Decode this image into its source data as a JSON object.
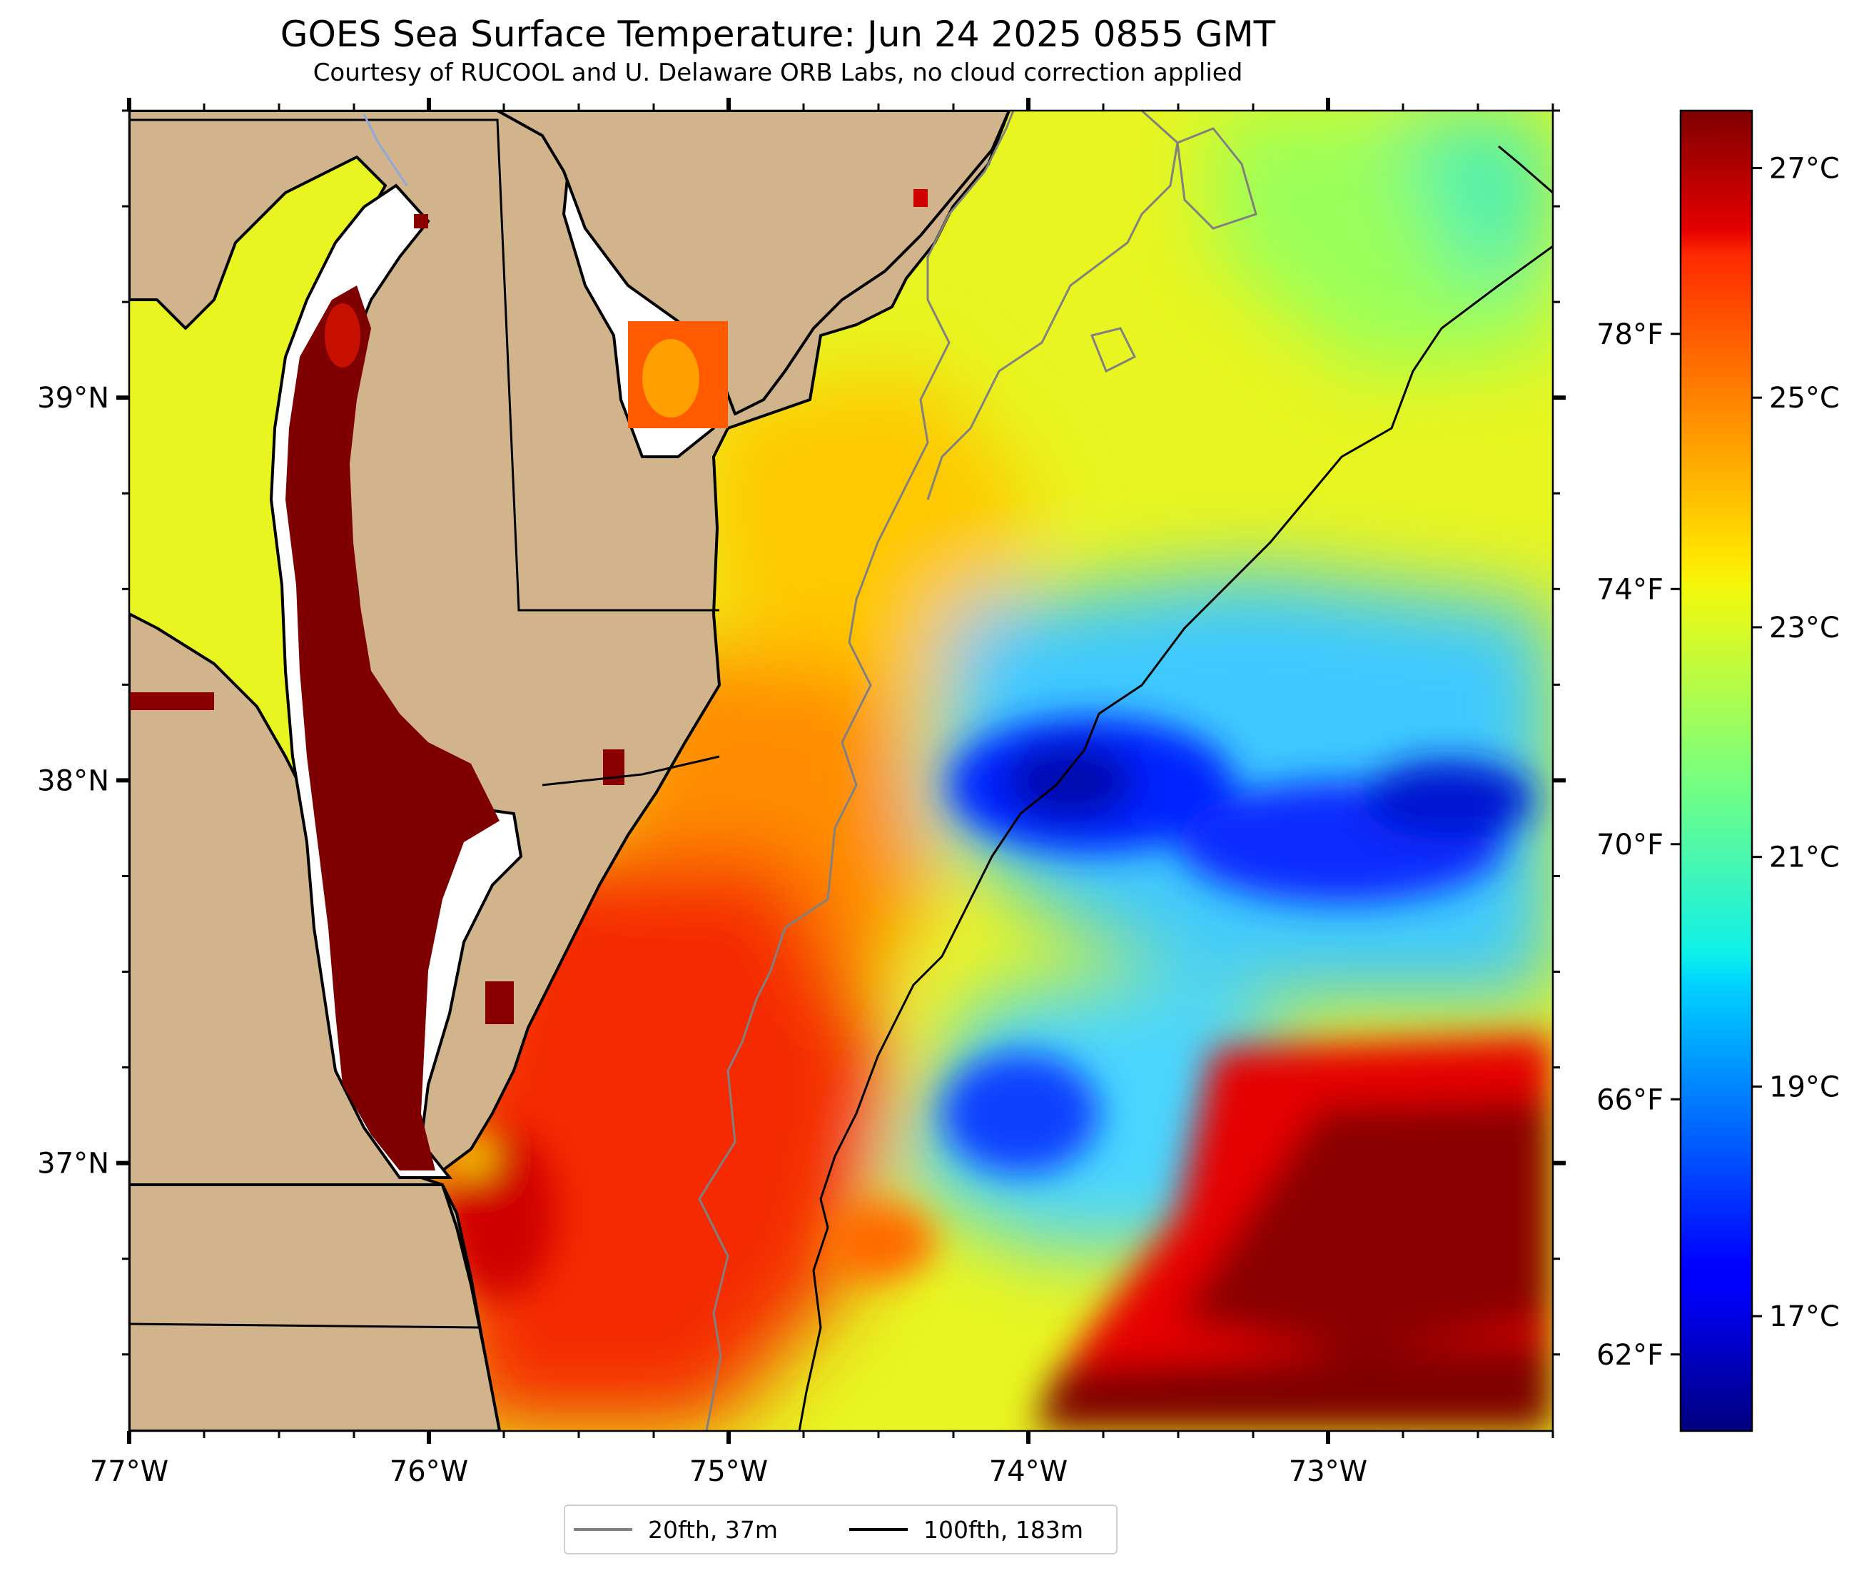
{
  "title": "GOES Sea Surface Temperature: Jun 24 2025 0855 GMT",
  "subtitle": "Courtesy of RUCOOL and U. Delaware ORB Labs, no cloud correction applied",
  "colors": {
    "land": "#d2b48c",
    "coastline": "#000000",
    "isobath_20fth": "#808080",
    "isobath_100fth": "#000000",
    "river": "#8fa8d8",
    "estuary_fill": "#7f0000"
  },
  "map": {
    "lon_range": [
      -77.0,
      -72.25
    ],
    "lat_range": [
      36.3,
      39.75
    ],
    "lon_ticks": [
      {
        "value": -77,
        "label": "77°W"
      },
      {
        "value": -76,
        "label": "76°W"
      },
      {
        "value": -75,
        "label": "75°W"
      },
      {
        "value": -74,
        "label": "74°W"
      },
      {
        "value": -73,
        "label": "73°W"
      }
    ],
    "lat_ticks": [
      {
        "value": 39,
        "label": "39°N"
      },
      {
        "value": 38,
        "label": "38°N"
      },
      {
        "value": 37,
        "label": "37°N"
      }
    ],
    "sst_zones": [
      {
        "region": "shelf north",
        "temp_c": 23.0
      },
      {
        "region": "nearshore south",
        "temp_c": 26.5
      },
      {
        "region": "cold pool offshore",
        "temp_c": 17.8
      },
      {
        "region": "gulf stream southeast",
        "temp_c": 27.0
      },
      {
        "region": "northeast corner",
        "temp_c": 21.0
      }
    ]
  },
  "colorbar": {
    "colormap": "jet",
    "celsius_range": [
      16.0,
      27.5
    ],
    "celsius_ticks": [
      {
        "value": 17,
        "label": "17°C"
      },
      {
        "value": 19,
        "label": "19°C"
      },
      {
        "value": 21,
        "label": "21°C"
      },
      {
        "value": 23,
        "label": "23°C"
      },
      {
        "value": 25,
        "label": "25°C"
      },
      {
        "value": 27,
        "label": "27°C"
      }
    ],
    "fahrenheit_ticks": [
      {
        "value": 62,
        "label": "62°F"
      },
      {
        "value": 66,
        "label": "66°F"
      },
      {
        "value": 70,
        "label": "70°F"
      },
      {
        "value": 74,
        "label": "74°F"
      },
      {
        "value": 78,
        "label": "78°F"
      }
    ]
  },
  "legend": [
    {
      "label": "20fth, 37m",
      "color": "#808080"
    },
    {
      "label": "100fth, 183m",
      "color": "#000000"
    }
  ]
}
